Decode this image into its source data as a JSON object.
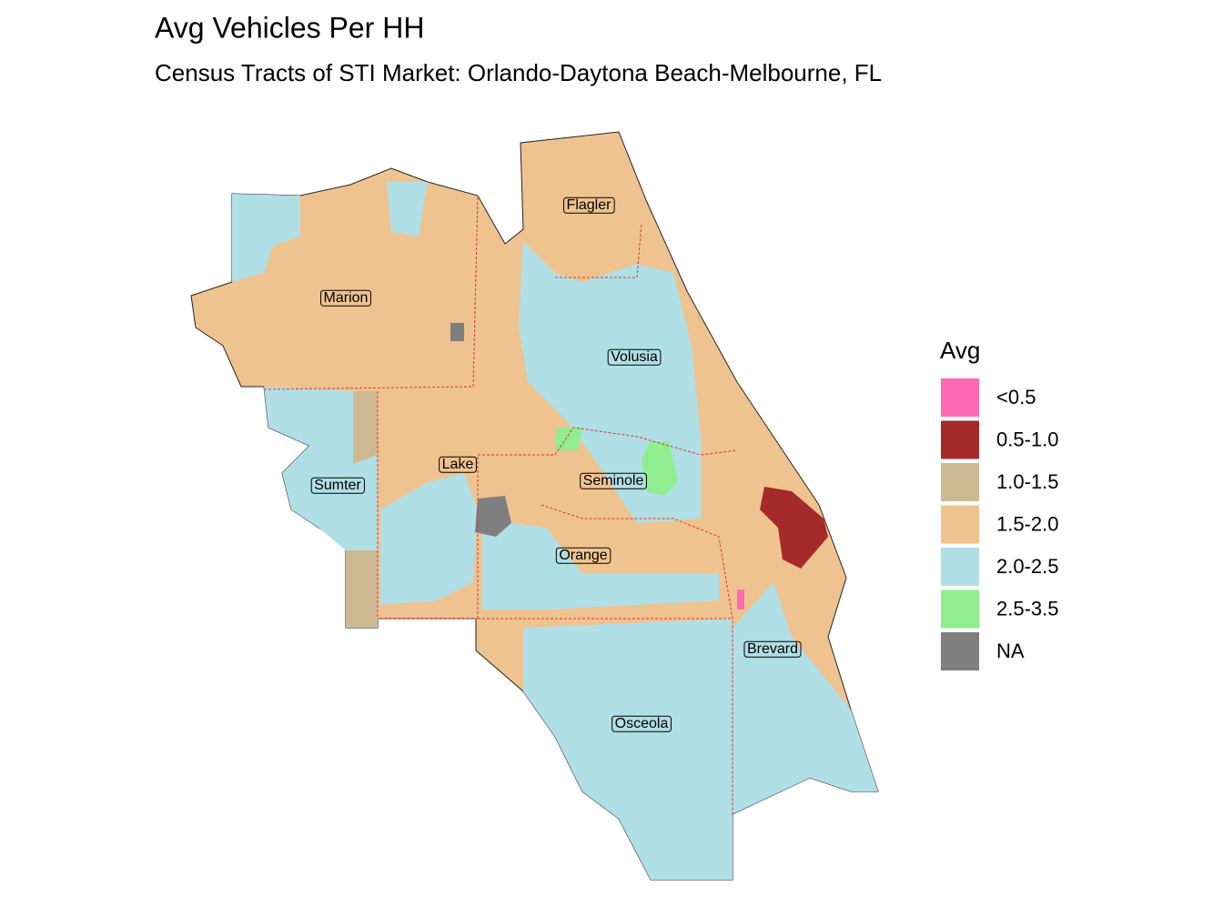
{
  "title": "Avg Vehicles Per HH",
  "subtitle": "Census Tracts of STI Market: Orlando-Daytona Beach-Melbourne, FL",
  "legend": {
    "title": "Avg",
    "items": [
      {
        "label": "<0.5",
        "color": "#ff69b4"
      },
      {
        "label": "0.5-1.0",
        "color": "#a52a2a"
      },
      {
        "label": "1.0-1.5",
        "color": "#cdb894"
      },
      {
        "label": "1.5-2.0",
        "color": "#efc38f"
      },
      {
        "label": "2.0-2.5",
        "color": "#b0dfe5"
      },
      {
        "label": "2.5-3.5",
        "color": "#90ee90"
      },
      {
        "label": "NA",
        "color": "#7f7f7f"
      }
    ]
  },
  "counties": [
    "Flagler",
    "Marion",
    "Volusia",
    "Lake",
    "Seminole",
    "Sumter",
    "Orange",
    "Brevard",
    "Osceola"
  ]
}
